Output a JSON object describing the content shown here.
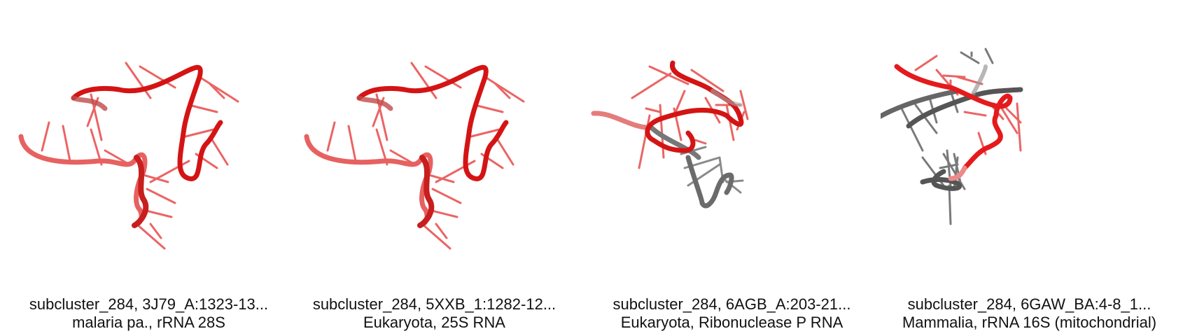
{
  "panels": [
    {
      "id": "subcluster_284, 3J79_A:1323-13...",
      "desc": "malaria pa., rRNA 28S",
      "colors": {
        "primary": "#e41a1c",
        "secondary": "#e41a1c"
      }
    },
    {
      "id": "subcluster_284, 5XXB_1:1282-12...",
      "desc": "Eukaryota, 25S RNA",
      "colors": {
        "primary": "#e41a1c",
        "secondary": "#e41a1c"
      }
    },
    {
      "id": "subcluster_284, 6AGB_A:203-21...",
      "desc": "Eukaryota, Ribonuclease P RNA",
      "colors": {
        "primary": "#e41a1c",
        "secondary": "#6b6b6b"
      }
    },
    {
      "id": "subcluster_284, 6GAW_BA:4-8_1...",
      "desc": "Mammalia, rRNA 16S (mitochondrial)",
      "colors": {
        "primary": "#e41a1c",
        "secondary": "#5a5a5a"
      }
    }
  ]
}
